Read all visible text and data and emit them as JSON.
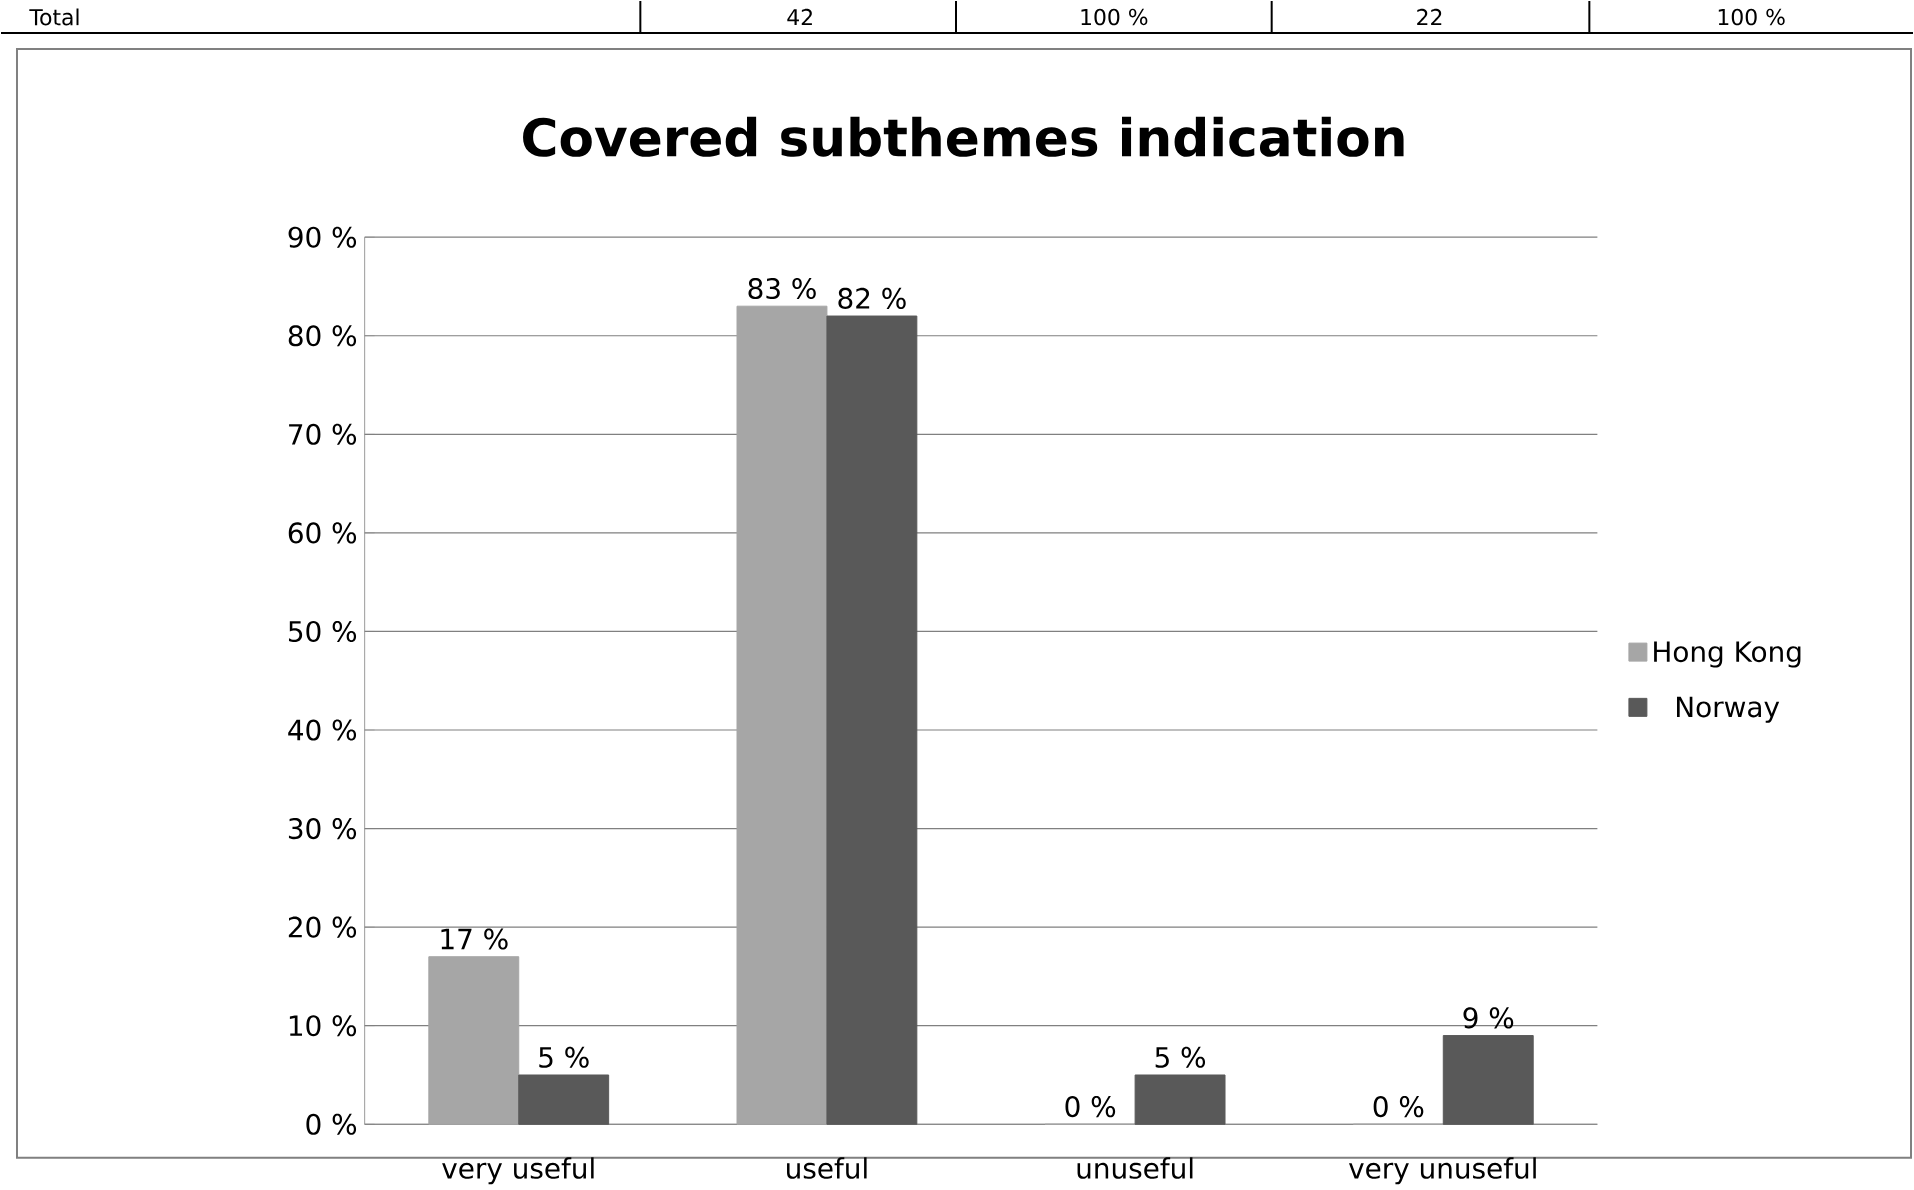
{
  "chart_data": {
    "type": "bar",
    "title": "Covered subthemes indication",
    "categories": [
      "very useful",
      "useful",
      "unuseful",
      "very unuseful"
    ],
    "series": [
      {
        "name": "Hong Kong",
        "color": "#a6a6a6",
        "values": [
          17,
          83,
          0,
          0
        ],
        "value_labels": [
          "17 %",
          "83 %",
          "0 %",
          "0 %"
        ]
      },
      {
        "name": "Norway",
        "color": "#595959",
        "values": [
          5,
          82,
          5,
          9
        ],
        "value_labels": [
          "5 %",
          "82 %",
          "5 %",
          "9 %"
        ]
      }
    ],
    "ylim": [
      0,
      90
    ],
    "yticks": [
      {
        "value": 0,
        "label": "0 %"
      },
      {
        "value": 10,
        "label": "10 %"
      },
      {
        "value": 20,
        "label": "20 %"
      },
      {
        "value": 30,
        "label": "30 %"
      },
      {
        "value": 40,
        "label": "40 %"
      },
      {
        "value": 50,
        "label": "50 %"
      },
      {
        "value": 60,
        "label": "60 %"
      },
      {
        "value": 70,
        "label": "70 %"
      },
      {
        "value": 80,
        "label": "80 %"
      },
      {
        "value": 90,
        "label": "90 %"
      }
    ],
    "grid": "y",
    "legend": "right",
    "annotations": [
      "Total",
      "42",
      "100 %",
      "22",
      "100 %"
    ]
  }
}
